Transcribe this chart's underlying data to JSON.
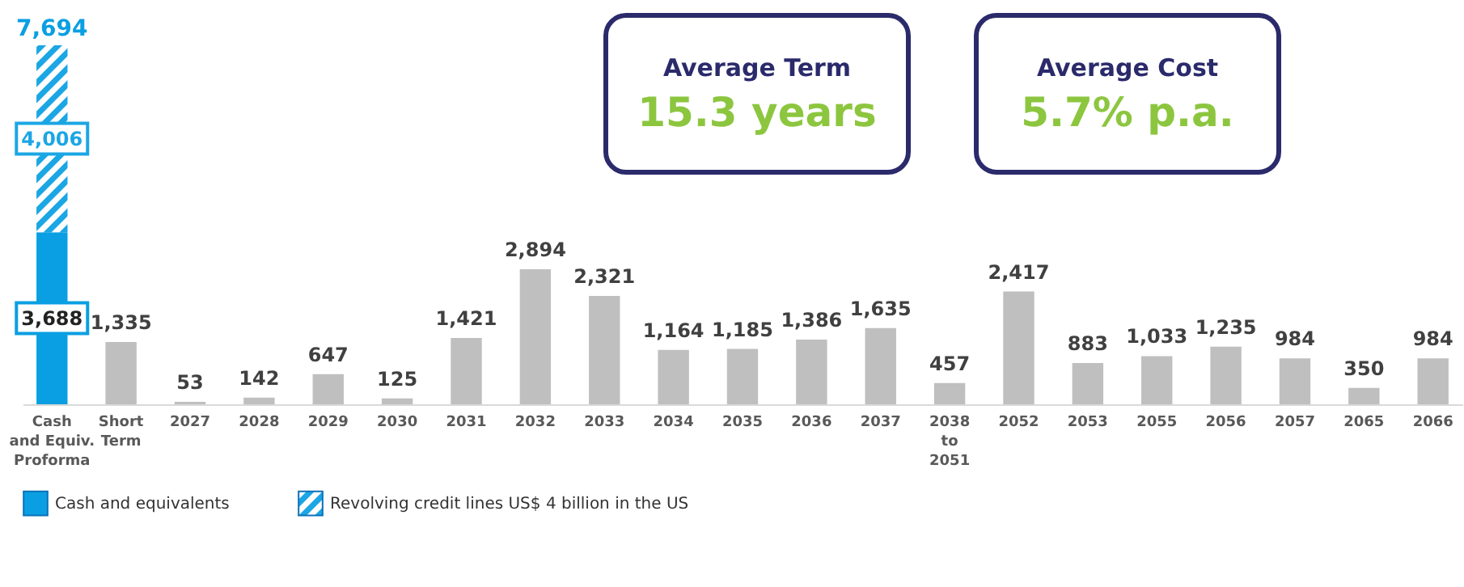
{
  "chart_data": {
    "type": "bar",
    "stacked": true,
    "legend": "bottom",
    "grid": false,
    "categories": [
      "Cash\nand Equiv.\nProforma",
      "Short\nTerm",
      "2027",
      "2028",
      "2029",
      "2030",
      "2031",
      "2032",
      "2033",
      "2034",
      "2035",
      "2036",
      "2037",
      "2038\nto\n2051",
      "2052",
      "2053",
      "2055",
      "2056",
      "2057",
      "2065",
      "2066"
    ],
    "series": [
      {
        "name": "Cash and equivalents",
        "color": "#0a9fe2",
        "values": [
          3688,
          null,
          null,
          null,
          null,
          null,
          null,
          null,
          null,
          null,
          null,
          null,
          null,
          null,
          null,
          null,
          null,
          null,
          null,
          null,
          null
        ],
        "value_labels": [
          "3,688",
          null,
          null,
          null,
          null,
          null,
          null,
          null,
          null,
          null,
          null,
          null,
          null,
          null,
          null,
          null,
          null,
          null,
          null,
          null,
          null
        ]
      },
      {
        "name": "Revolving credit lines US$ 4 billion in the US",
        "color": "#1ba6e4",
        "values": [
          4006,
          null,
          null,
          null,
          null,
          null,
          null,
          null,
          null,
          null,
          null,
          null,
          null,
          null,
          null,
          null,
          null,
          null,
          null,
          null,
          null
        ],
        "value_labels": [
          "4,006",
          null,
          null,
          null,
          null,
          null,
          null,
          null,
          null,
          null,
          null,
          null,
          null,
          null,
          null,
          null,
          null,
          null,
          null,
          null,
          null
        ]
      },
      {
        "color": "#bfbfbf",
        "values": [
          null,
          1335,
          53,
          142,
          647,
          125,
          1421,
          2894,
          2321,
          1164,
          1185,
          1386,
          1635,
          457,
          2417,
          883,
          1033,
          1235,
          984,
          350,
          984
        ],
        "value_labels": [
          null,
          "1,335",
          "53",
          "142",
          "647",
          "125",
          "1,421",
          "2,894",
          "2,321",
          "1,164",
          "1,185",
          "1,386",
          "1,635",
          "457",
          "2,417",
          "883",
          "1,033",
          "1,235",
          "984",
          "350",
          "984"
        ]
      }
    ],
    "totals": [
      "7,694",
      null,
      null,
      null,
      null,
      null,
      null,
      null,
      null,
      null,
      null,
      null,
      null,
      null,
      null,
      null,
      null,
      null,
      null,
      null,
      null
    ],
    "annotations": [
      "Average Term",
      "15.3 years",
      "Average Cost",
      "5.7% p.a."
    ]
  }
}
